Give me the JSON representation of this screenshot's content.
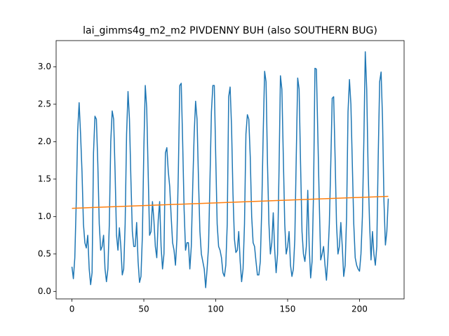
{
  "chart_data": {
    "type": "line",
    "title": "lai_gimms4g_m2_m2 PIVDENNY BUH (also SOUTHERN BUG)",
    "xlim": [
      -11,
      231
    ],
    "ylim": [
      -0.1,
      3.35
    ],
    "xticks": [
      0,
      50,
      100,
      150,
      200
    ],
    "yticks": [
      {
        "value": 0,
        "label": "0.0"
      },
      {
        "value": 0.5,
        "label": "0.5"
      },
      {
        "value": 1,
        "label": "1.0"
      },
      {
        "value": 1.5,
        "label": "1.5"
      },
      {
        "value": 2,
        "label": "2.0"
      },
      {
        "value": 2.5,
        "label": "2.5"
      },
      {
        "value": 3,
        "label": "3.0"
      }
    ],
    "series": [
      {
        "color": "#1f77b4",
        "x": [
          0,
          1,
          2,
          3,
          4,
          5,
          6,
          7,
          8,
          9,
          10,
          11,
          12,
          13,
          14,
          15,
          16,
          17,
          18,
          19,
          20,
          21,
          22,
          23,
          24,
          25,
          26,
          27,
          28,
          29,
          30,
          31,
          32,
          33,
          34,
          35,
          36,
          37,
          38,
          39,
          40,
          41,
          42,
          43,
          44,
          45,
          46,
          47,
          48,
          49,
          50,
          51,
          52,
          53,
          54,
          55,
          56,
          57,
          58,
          59,
          60,
          61,
          62,
          63,
          64,
          65,
          66,
          67,
          68,
          69,
          70,
          71,
          72,
          73,
          74,
          75,
          76,
          77,
          78,
          79,
          80,
          81,
          82,
          83,
          84,
          85,
          86,
          87,
          88,
          89,
          90,
          91,
          92,
          93,
          94,
          95,
          96,
          97,
          98,
          99,
          100,
          101,
          102,
          103,
          104,
          105,
          106,
          107,
          108,
          109,
          110,
          111,
          112,
          113,
          114,
          115,
          116,
          117,
          118,
          119,
          120,
          121,
          122,
          123,
          124,
          125,
          126,
          127,
          128,
          129,
          130,
          131,
          132,
          133,
          134,
          135,
          136,
          137,
          138,
          139,
          140,
          141,
          142,
          143,
          144,
          145,
          146,
          147,
          148,
          149,
          150,
          151,
          152,
          153,
          154,
          155,
          156,
          157,
          158,
          159,
          160,
          161,
          162,
          163,
          164,
          165,
          166,
          167,
          168,
          169,
          170,
          171,
          172,
          173,
          174,
          175,
          176,
          177,
          178,
          179,
          180,
          181,
          182,
          183,
          184,
          185,
          186,
          187,
          188,
          189,
          190,
          191,
          192,
          193,
          194,
          195,
          196,
          197,
          198,
          199,
          200,
          201,
          202,
          203,
          204,
          205,
          206,
          207,
          208,
          209,
          210,
          211,
          212,
          213,
          214,
          215,
          216,
          217,
          218,
          219,
          220
        ],
        "values": [
          0.33,
          0.17,
          0.45,
          1.2,
          2.15,
          2.52,
          2.1,
          1.6,
          0.9,
          0.65,
          0.58,
          0.75,
          0.3,
          0.09,
          0.25,
          1.85,
          2.34,
          2.3,
          1.7,
          0.9,
          0.55,
          0.6,
          0.75,
          0.3,
          0.13,
          0.3,
          0.9,
          2.0,
          2.41,
          2.3,
          1.6,
          0.75,
          0.55,
          0.85,
          0.6,
          0.22,
          0.3,
          0.9,
          2.1,
          2.67,
          2.3,
          1.5,
          0.8,
          0.6,
          0.6,
          0.92,
          0.4,
          0.12,
          0.2,
          0.75,
          1.9,
          2.75,
          2.45,
          1.6,
          0.75,
          0.8,
          1.2,
          0.95,
          0.6,
          0.45,
          0.95,
          1.2,
          0.6,
          0.3,
          0.5,
          1.85,
          1.92,
          1.6,
          1.4,
          1.0,
          0.65,
          0.55,
          0.35,
          0.7,
          1.6,
          2.75,
          2.78,
          2.0,
          1.1,
          0.55,
          0.65,
          0.65,
          0.3,
          0.6,
          1.4,
          2.1,
          2.54,
          2.3,
          1.5,
          0.8,
          0.5,
          0.4,
          0.3,
          0.05,
          0.3,
          0.6,
          1.5,
          2.4,
          2.75,
          2.75,
          1.8,
          0.9,
          0.6,
          0.55,
          0.45,
          0.25,
          0.2,
          0.35,
          0.9,
          2.6,
          2.73,
          2.2,
          1.3,
          0.7,
          0.52,
          0.55,
          0.8,
          0.4,
          0.13,
          0.3,
          0.9,
          2.1,
          2.36,
          2.3,
          1.8,
          1.0,
          0.65,
          0.6,
          0.4,
          0.22,
          0.22,
          0.4,
          1.1,
          2.1,
          2.94,
          2.8,
          1.7,
          0.9,
          0.5,
          0.65,
          1.05,
          0.55,
          0.25,
          0.5,
          1.6,
          2.88,
          2.7,
          1.8,
          0.9,
          0.5,
          0.6,
          0.8,
          0.35,
          0.2,
          0.3,
          0.7,
          1.8,
          2.85,
          2.7,
          1.7,
          0.8,
          0.5,
          0.4,
          0.6,
          1.35,
          0.6,
          0.18,
          0.4,
          1.3,
          2.98,
          2.97,
          2.1,
          1.2,
          0.42,
          0.5,
          0.6,
          0.35,
          0.15,
          0.45,
          0.9,
          1.7,
          2.58,
          2.6,
          1.8,
          0.9,
          0.5,
          0.6,
          0.92,
          0.6,
          0.2,
          0.35,
          1.0,
          2.4,
          2.83,
          2.5,
          1.7,
          0.9,
          0.45,
          0.35,
          0.3,
          0.27,
          0.5,
          1.0,
          2.0,
          3.2,
          2.7,
          1.6,
          0.9,
          0.42,
          0.8,
          0.5,
          0.35,
          0.6,
          1.8,
          2.8,
          2.93,
          2.3,
          1.2,
          0.62,
          0.8,
          1.24
        ]
      },
      {
        "color": "#ff7f0e",
        "x": [
          0,
          220
        ],
        "values": [
          1.11,
          1.27
        ]
      }
    ]
  }
}
